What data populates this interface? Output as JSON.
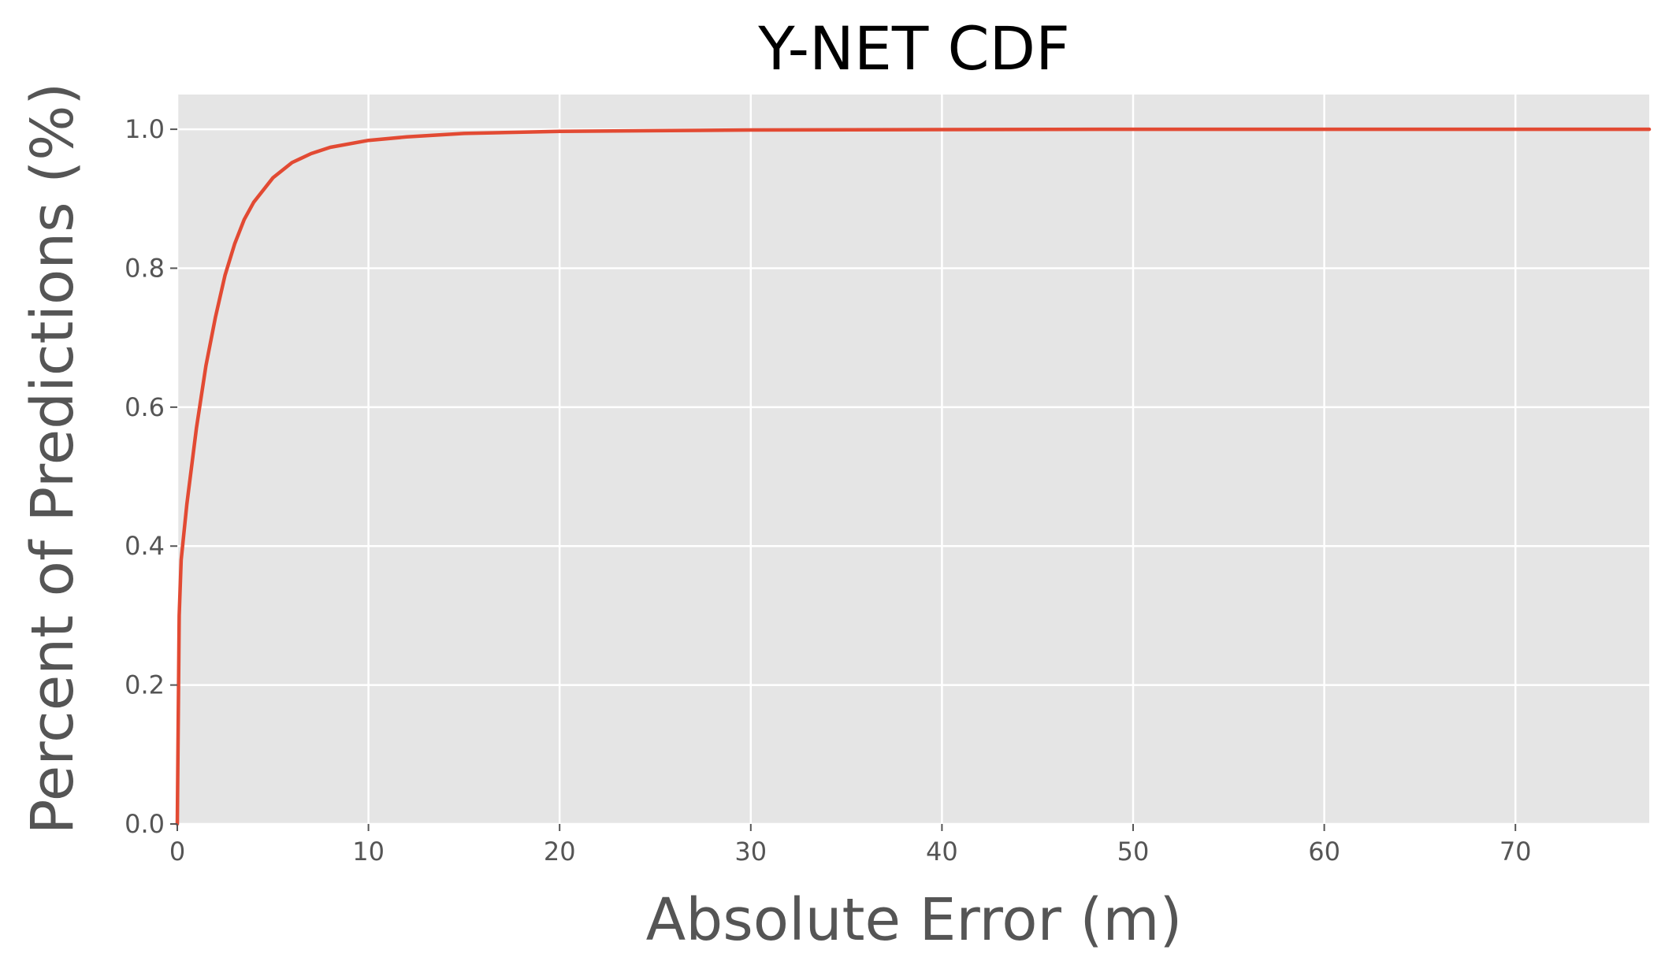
{
  "chart_data": {
    "type": "line",
    "title": "Y-NET CDF",
    "xlabel": "Absolute Error (m)",
    "ylabel": "Percent of Predictions (%)",
    "xlim": [
      0,
      77
    ],
    "ylim": [
      0,
      1.05
    ],
    "xticks": [
      0,
      10,
      20,
      30,
      40,
      50,
      60,
      70
    ],
    "xtick_labels": [
      "0",
      "10",
      "20",
      "30",
      "40",
      "50",
      "60",
      "70"
    ],
    "yticks": [
      0.0,
      0.2,
      0.4,
      0.6,
      0.8,
      1.0
    ],
    "ytick_labels": [
      "0.0",
      "0.2",
      "0.4",
      "0.6",
      "0.8",
      "1.0"
    ],
    "grid": true,
    "background": "#e5e5e5",
    "series": [
      {
        "color": "#e24a33",
        "x": [
          0,
          0.1,
          0.2,
          0.5,
          1,
          1.5,
          2,
          2.5,
          3,
          3.5,
          4,
          5,
          6,
          7,
          8,
          10,
          12,
          15,
          20,
          25,
          30,
          40,
          50,
          60,
          70,
          77
        ],
        "y": [
          0.0,
          0.3,
          0.38,
          0.46,
          0.57,
          0.66,
          0.73,
          0.79,
          0.835,
          0.87,
          0.895,
          0.93,
          0.952,
          0.965,
          0.974,
          0.984,
          0.989,
          0.994,
          0.997,
          0.998,
          0.999,
          0.9995,
          1.0,
          1.0,
          1.0,
          1.0
        ]
      }
    ]
  }
}
